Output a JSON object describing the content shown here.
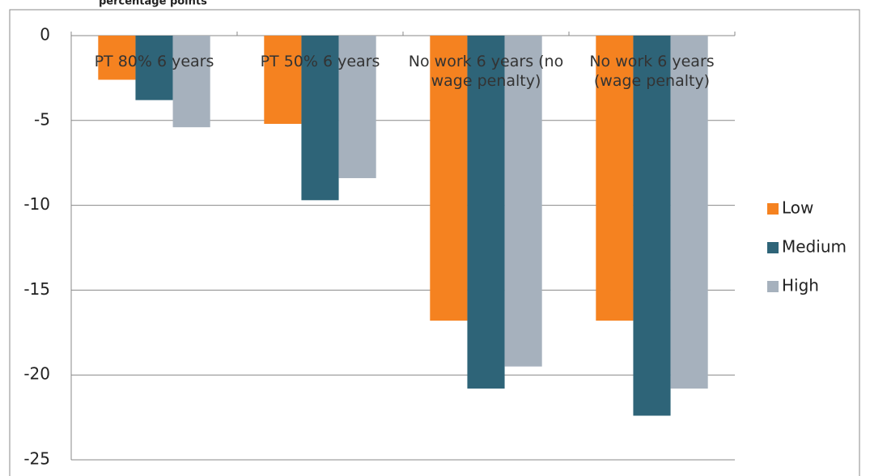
{
  "chart_data": {
    "type": "bar",
    "title": "percentage points",
    "categories": [
      "PT 80% 6 years",
      "PT 50% 6 years",
      "No work 6 years (no wage penalty)",
      "No work 6 years (wage penalty)"
    ],
    "series": [
      {
        "name": "Low",
        "color": "#f58220",
        "values": [
          -2.6,
          -5.2,
          -16.8,
          -16.8
        ]
      },
      {
        "name": "Medium",
        "color": "#2e6478",
        "values": [
          -3.8,
          -9.7,
          -20.8,
          -22.4
        ]
      },
      {
        "name": "High",
        "color": "#a6b1bd",
        "values": [
          -5.4,
          -8.4,
          -19.5,
          -20.8
        ]
      }
    ],
    "ylim": [
      -25,
      0
    ],
    "yticks": [
      0,
      -5,
      -10,
      -15,
      -20,
      -25
    ],
    "grid": true,
    "legend": "right"
  }
}
